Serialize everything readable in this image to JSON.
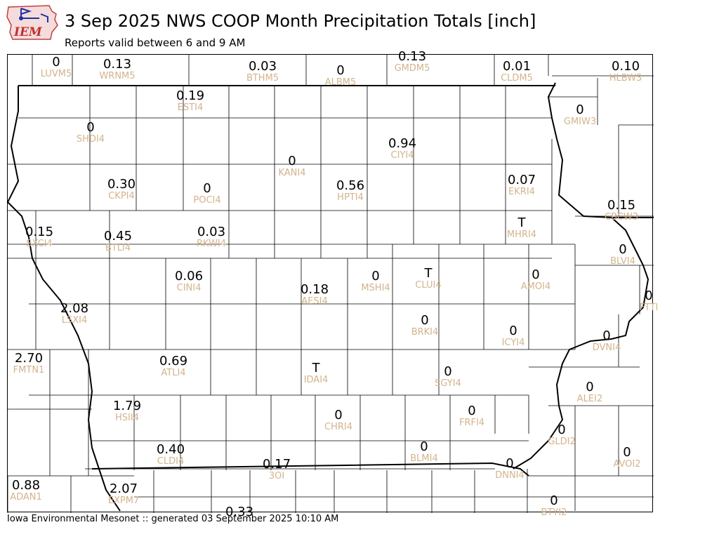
{
  "header": {
    "logo_text": "IEM",
    "title": "3 Sep 2025 NWS COOP Month Precipitation Totals [inch]",
    "subtitle": "Reports valid between 6 and 9 AM"
  },
  "footer": {
    "credit": "Iowa Environmental Mesonet :: generated 03 September 2025 10:10 AM"
  },
  "colors": {
    "value_text": "#000000",
    "station_id_text": "#d2b48c",
    "county_lines": "#000000",
    "background": "#ffffff"
  },
  "stations": [
    {
      "id": "LUVM5",
      "value": "0"
    },
    {
      "id": "WRNM5",
      "value": "0.13"
    },
    {
      "id": "BTHM5",
      "value": "0.03"
    },
    {
      "id": "ALBM5",
      "value": "0"
    },
    {
      "id": "GMDM5",
      "value": "0.13"
    },
    {
      "id": "CLDM5",
      "value": "0.01"
    },
    {
      "id": "HLBW3",
      "value": "0.10"
    },
    {
      "id": "ESTI4",
      "value": "0.19"
    },
    {
      "id": "GMIW3",
      "value": "0"
    },
    {
      "id": "SHDI4",
      "value": "0"
    },
    {
      "id": "CIYI4",
      "value": "0.94"
    },
    {
      "id": "KANI4",
      "value": "0"
    },
    {
      "id": "EKRI4",
      "value": "0.07"
    },
    {
      "id": "CKPI4",
      "value": "0.30"
    },
    {
      "id": "POCI4",
      "value": "0"
    },
    {
      "id": "HPTI4",
      "value": "0.56"
    },
    {
      "id": "CBCW3",
      "value": "0.15"
    },
    {
      "id": "MHRI4",
      "value": "T"
    },
    {
      "id": "SXCI4",
      "value": "0.15"
    },
    {
      "id": "BTLI4",
      "value": "0.45"
    },
    {
      "id": "RKWI4",
      "value": "0.03"
    },
    {
      "id": "BLVI4",
      "value": "0"
    },
    {
      "id": "CINI4",
      "value": "0.06"
    },
    {
      "id": "MSHI4",
      "value": "0"
    },
    {
      "id": "CLUI4",
      "value": "T"
    },
    {
      "id": "AMOI4",
      "value": "0"
    },
    {
      "id": "AESI4",
      "value": "0.18"
    },
    {
      "id": "FTTI",
      "value": "0"
    },
    {
      "id": "LSXI4",
      "value": "2.08"
    },
    {
      "id": "BRKI4",
      "value": "0"
    },
    {
      "id": "ICYI4",
      "value": "0"
    },
    {
      "id": "DVNI4",
      "value": "0"
    },
    {
      "id": "FMTN1",
      "value": "2.70"
    },
    {
      "id": "ATLI4",
      "value": "0.69"
    },
    {
      "id": "IDAI4",
      "value": "T"
    },
    {
      "id": "SGYI4",
      "value": "0"
    },
    {
      "id": "ALEI2",
      "value": "0"
    },
    {
      "id": "HSII4",
      "value": "1.79"
    },
    {
      "id": "CHRI4",
      "value": "0"
    },
    {
      "id": "FRFI4",
      "value": "0"
    },
    {
      "id": "GLDI2",
      "value": "0"
    },
    {
      "id": "CLDI4",
      "value": "0.40"
    },
    {
      "id": "BLMI4",
      "value": "0"
    },
    {
      "id": "AVOI2",
      "value": "0"
    },
    {
      "id": "3OI",
      "value": "0.17"
    },
    {
      "id": "DNNI4",
      "value": "0"
    },
    {
      "id": "ADAN1",
      "value": "0.88"
    },
    {
      "id": "EXPM7",
      "value": "2.07"
    },
    {
      "id": "BTYI2",
      "value": "0"
    },
    {
      "id": "",
      "value": "0.33"
    }
  ]
}
